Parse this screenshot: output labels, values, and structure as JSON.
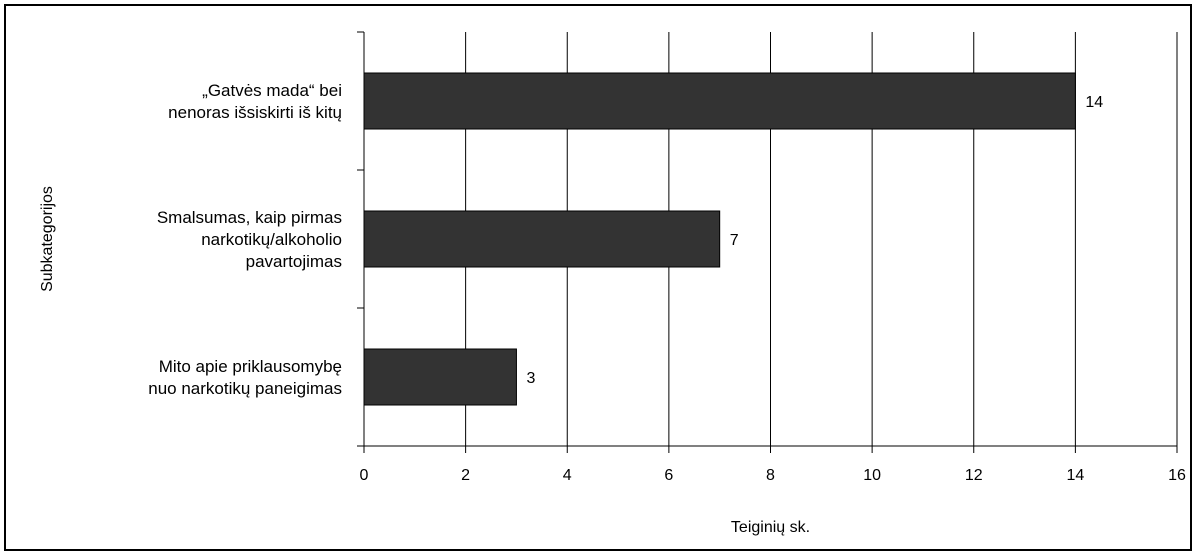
{
  "chart_data": {
    "type": "bar",
    "orientation": "horizontal",
    "categories": [
      [
        "„Gatvės mada“ bei",
        "nenoras išsiskirti iš kitų"
      ],
      [
        "Smalsumas, kaip pirmas",
        "narkotikų/alkoholio",
        "pavartojimas"
      ],
      [
        "Mito apie priklausomybę",
        "nuo narkotikų paneigimas"
      ]
    ],
    "values": [
      14,
      7,
      3
    ],
    "xlabel": "Teiginių sk.",
    "ylabel": "Subkategorijos",
    "xlim": [
      0,
      16
    ],
    "xticks": [
      0,
      2,
      4,
      6,
      8,
      10,
      12,
      14,
      16
    ],
    "grid": "vertical",
    "legend": "none",
    "bar_color": "#333333",
    "data_labels": [
      "14",
      "7",
      "3"
    ]
  }
}
